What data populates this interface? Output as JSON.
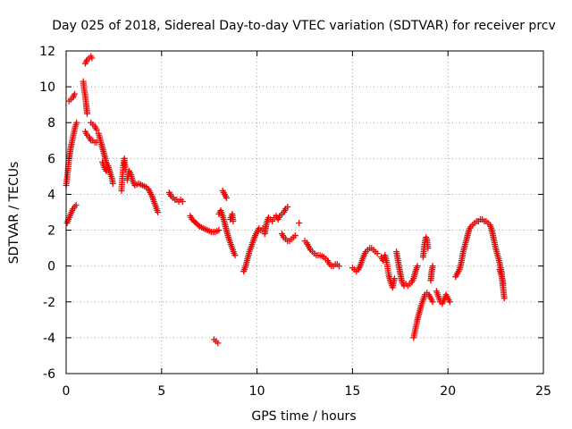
{
  "chart_data": {
    "type": "scatter",
    "title": "Day 025 of 2018, Sidereal Day-to-day VTEC variation (SDTVAR) for receiver prcv",
    "xlabel": "GPS time / hours",
    "ylabel": "SDTVAR / TECUs",
    "xlim": [
      0,
      25
    ],
    "ylim": [
      -6,
      12
    ],
    "xticks": [
      0,
      5,
      10,
      15,
      20,
      25
    ],
    "yticks": [
      -6,
      -4,
      -2,
      0,
      2,
      4,
      6,
      8,
      10,
      12
    ],
    "xtick_labels": [
      "0",
      "5",
      "10",
      "15",
      "20",
      "25"
    ],
    "ytick_labels": [
      "-6",
      "-4",
      "-2",
      "0",
      "2",
      "4",
      "6",
      "8",
      "10",
      "12"
    ],
    "grid": true,
    "marker": "plus",
    "series": [
      {
        "name": "SDTVAR",
        "color": "#ff0000",
        "segments": [
          [
            [
              0.0,
              4.5
            ],
            [
              0.08,
              5.2
            ],
            [
              0.16,
              6.0
            ],
            [
              0.24,
              6.6
            ],
            [
              0.32,
              7.0
            ],
            [
              0.4,
              7.4
            ],
            [
              0.48,
              7.8
            ],
            [
              0.55,
              8.0
            ]
          ],
          [
            [
              0.05,
              2.4
            ],
            [
              0.12,
              2.6
            ],
            [
              0.2,
              2.8
            ],
            [
              0.28,
              3.0
            ],
            [
              0.36,
              3.2
            ],
            [
              0.44,
              3.3
            ],
            [
              0.52,
              3.4
            ]
          ],
          [
            [
              0.15,
              9.2
            ],
            [
              0.25,
              9.3
            ],
            [
              0.35,
              9.4
            ],
            [
              0.45,
              9.6
            ]
          ],
          [
            [
              0.9,
              10.3
            ],
            [
              0.95,
              9.8
            ],
            [
              1.0,
              9.5
            ],
            [
              1.05,
              9.0
            ],
            [
              1.1,
              8.5
            ]
          ],
          [
            [
              1.0,
              7.5
            ],
            [
              1.1,
              7.3
            ],
            [
              1.2,
              7.2
            ],
            [
              1.3,
              7.0
            ],
            [
              1.4,
              7.0
            ],
            [
              1.5,
              6.9
            ],
            [
              1.6,
              6.9
            ]
          ],
          [
            [
              1.0,
              11.3
            ],
            [
              1.1,
              11.5
            ],
            [
              1.2,
              11.6
            ],
            [
              1.3,
              11.7
            ],
            [
              1.35,
              11.6
            ]
          ],
          [
            [
              1.3,
              8.0
            ],
            [
              1.4,
              7.9
            ],
            [
              1.5,
              7.8
            ],
            [
              1.6,
              7.6
            ]
          ],
          [
            [
              1.7,
              7.4
            ],
            [
              1.8,
              7.0
            ],
            [
              1.9,
              6.6
            ],
            [
              2.0,
              6.2
            ],
            [
              2.1,
              5.8
            ],
            [
              2.2,
              5.5
            ],
            [
              2.3,
              5.2
            ],
            [
              2.4,
              4.9
            ],
            [
              2.45,
              4.6
            ]
          ],
          [
            [
              1.9,
              5.8
            ],
            [
              2.0,
              5.5
            ],
            [
              2.1,
              5.3
            ],
            [
              2.2,
              5.6
            ],
            [
              2.3,
              5.2
            ]
          ],
          [
            [
              2.9,
              4.2
            ],
            [
              2.95,
              5.0
            ],
            [
              3.0,
              5.6
            ],
            [
              3.05,
              6.0
            ],
            [
              3.1,
              5.4
            ]
          ],
          [
            [
              3.2,
              4.8
            ],
            [
              3.3,
              5.3
            ],
            [
              3.4,
              5.1
            ],
            [
              3.5,
              4.7
            ],
            [
              3.6,
              4.5
            ],
            [
              3.8,
              4.6
            ],
            [
              4.0,
              4.5
            ],
            [
              4.2,
              4.4
            ]
          ],
          [
            [
              4.3,
              4.3
            ],
            [
              4.4,
              4.1
            ],
            [
              4.5,
              3.9
            ],
            [
              4.6,
              3.6
            ],
            [
              4.7,
              3.3
            ],
            [
              4.8,
              3.0
            ]
          ],
          [
            [
              5.4,
              4.1
            ],
            [
              5.5,
              3.9
            ],
            [
              5.6,
              3.8
            ],
            [
              5.7,
              3.7
            ],
            [
              5.8,
              3.7
            ],
            [
              5.9,
              3.6
            ],
            [
              6.0,
              3.7
            ],
            [
              6.1,
              3.6
            ]
          ],
          [
            [
              6.5,
              2.8
            ],
            [
              6.6,
              2.6
            ],
            [
              6.8,
              2.4
            ],
            [
              7.0,
              2.2
            ],
            [
              7.2,
              2.1
            ],
            [
              7.4,
              2.0
            ],
            [
              7.6,
              1.9
            ],
            [
              7.8,
              1.9
            ],
            [
              8.0,
              2.0
            ]
          ],
          [
            [
              7.75,
              -4.1
            ],
            [
              7.85,
              -4.2
            ],
            [
              7.95,
              -4.3
            ]
          ],
          [
            [
              8.0,
              2.9
            ],
            [
              8.1,
              3.1
            ],
            [
              8.2,
              2.8
            ],
            [
              8.3,
              2.4
            ],
            [
              8.4,
              2.0
            ],
            [
              8.5,
              1.6
            ],
            [
              8.6,
              1.3
            ],
            [
              8.7,
              1.0
            ],
            [
              8.8,
              0.7
            ],
            [
              8.85,
              0.6
            ]
          ],
          [
            [
              8.2,
              4.2
            ],
            [
              8.3,
              4.0
            ],
            [
              8.4,
              3.8
            ]
          ],
          [
            [
              8.6,
              2.6
            ],
            [
              8.7,
              2.9
            ],
            [
              8.75,
              2.5
            ]
          ],
          [
            [
              9.3,
              -0.3
            ],
            [
              9.4,
              0.0
            ],
            [
              9.5,
              0.4
            ],
            [
              9.6,
              0.8
            ],
            [
              9.7,
              1.1
            ],
            [
              9.8,
              1.4
            ],
            [
              9.9,
              1.7
            ],
            [
              10.0,
              1.9
            ],
            [
              10.1,
              2.1
            ],
            [
              10.2,
              2.0
            ],
            [
              10.3,
              2.1
            ]
          ],
          [
            [
              10.4,
              1.8
            ],
            [
              10.5,
              2.4
            ],
            [
              10.6,
              2.7
            ],
            [
              10.7,
              2.6
            ],
            [
              10.8,
              2.5
            ]
          ],
          [
            [
              10.9,
              2.7
            ],
            [
              11.0,
              2.8
            ],
            [
              11.1,
              2.6
            ],
            [
              11.2,
              2.8
            ],
            [
              11.3,
              2.9
            ],
            [
              11.4,
              3.0
            ],
            [
              11.5,
              3.2
            ],
            [
              11.6,
              3.3
            ]
          ],
          [
            [
              11.3,
              1.8
            ],
            [
              11.4,
              1.6
            ],
            [
              11.5,
              1.5
            ],
            [
              11.6,
              1.4
            ],
            [
              11.7,
              1.4
            ],
            [
              11.8,
              1.5
            ],
            [
              11.9,
              1.6
            ],
            [
              12.0,
              1.7
            ]
          ],
          [
            [
              12.2,
              2.4
            ]
          ],
          [
            [
              12.5,
              1.4
            ],
            [
              12.6,
              1.3
            ],
            [
              12.7,
              1.1
            ],
            [
              12.8,
              0.9
            ],
            [
              12.9,
              0.8
            ],
            [
              13.0,
              0.7
            ],
            [
              13.1,
              0.6
            ],
            [
              13.3,
              0.6
            ],
            [
              13.5,
              0.5
            ],
            [
              13.6,
              0.4
            ]
          ],
          [
            [
              13.7,
              0.3
            ],
            [
              13.8,
              0.1
            ],
            [
              13.9,
              0.0
            ],
            [
              14.0,
              0.0
            ],
            [
              14.1,
              0.1
            ],
            [
              14.2,
              0.1
            ],
            [
              14.3,
              0.0
            ]
          ],
          [
            [
              15.0,
              -0.1
            ],
            [
              15.1,
              -0.2
            ],
            [
              15.2,
              -0.3
            ],
            [
              15.3,
              -0.2
            ],
            [
              15.4,
              0.0
            ],
            [
              15.5,
              0.3
            ],
            [
              15.6,
              0.6
            ],
            [
              15.7,
              0.8
            ],
            [
              15.8,
              0.9
            ],
            [
              15.9,
              1.0
            ],
            [
              16.0,
              1.0
            ],
            [
              16.1,
              0.9
            ],
            [
              16.2,
              0.8
            ],
            [
              16.3,
              0.7
            ]
          ],
          [
            [
              16.5,
              0.5
            ],
            [
              16.6,
              0.3
            ],
            [
              16.7,
              0.6
            ],
            [
              16.8,
              0.2
            ],
            [
              16.9,
              -0.5
            ],
            [
              17.0,
              -0.9
            ],
            [
              17.1,
              -1.2
            ],
            [
              17.2,
              -0.7
            ]
          ],
          [
            [
              17.3,
              0.8
            ],
            [
              17.4,
              0.2
            ],
            [
              17.5,
              -0.4
            ],
            [
              17.6,
              -0.9
            ],
            [
              17.7,
              -1.1
            ],
            [
              17.8,
              -1.0
            ],
            [
              17.9,
              -1.1
            ],
            [
              18.0,
              -1.0
            ],
            [
              18.1,
              -0.9
            ],
            [
              18.2,
              -0.7
            ],
            [
              18.3,
              -0.3
            ],
            [
              18.4,
              0.0
            ]
          ],
          [
            [
              18.2,
              -4.0
            ],
            [
              18.3,
              -3.5
            ],
            [
              18.4,
              -3.0
            ],
            [
              18.5,
              -2.6
            ],
            [
              18.6,
              -2.2
            ],
            [
              18.7,
              -1.9
            ],
            [
              18.8,
              -1.6
            ],
            [
              18.9,
              -1.5
            ],
            [
              19.0,
              -1.6
            ],
            [
              19.1,
              -1.8
            ],
            [
              19.2,
              -2.0
            ]
          ],
          [
            [
              18.7,
              0.5
            ],
            [
              18.75,
              1.0
            ],
            [
              18.8,
              1.4
            ],
            [
              18.85,
              1.6
            ],
            [
              18.9,
              1.5
            ],
            [
              18.95,
              1.0
            ]
          ],
          [
            [
              19.1,
              -0.8
            ],
            [
              19.15,
              -0.3
            ],
            [
              19.2,
              0.0
            ]
          ],
          [
            [
              19.4,
              -1.4
            ],
            [
              19.5,
              -1.7
            ],
            [
              19.6,
              -2.0
            ],
            [
              19.7,
              -2.1
            ],
            [
              19.8,
              -1.9
            ],
            [
              19.9,
              -1.6
            ],
            [
              20.0,
              -1.8
            ],
            [
              20.1,
              -2.0
            ]
          ],
          [
            [
              20.4,
              -0.6
            ],
            [
              20.5,
              -0.4
            ],
            [
              20.6,
              -0.2
            ],
            [
              20.7,
              0.2
            ],
            [
              20.8,
              0.8
            ],
            [
              20.9,
              1.2
            ],
            [
              21.0,
              1.6
            ],
            [
              21.1,
              2.0
            ],
            [
              21.2,
              2.2
            ],
            [
              21.3,
              2.3
            ],
            [
              21.4,
              2.4
            ],
            [
              21.5,
              2.5
            ],
            [
              21.6,
              2.5
            ],
            [
              21.7,
              2.6
            ],
            [
              21.8,
              2.6
            ],
            [
              21.9,
              2.5
            ],
            [
              22.0,
              2.5
            ],
            [
              22.1,
              2.4
            ],
            [
              22.2,
              2.3
            ],
            [
              22.3,
              2.0
            ],
            [
              22.4,
              1.5
            ],
            [
              22.5,
              1.0
            ],
            [
              22.6,
              0.6
            ],
            [
              22.7,
              0.2
            ],
            [
              22.8,
              -0.3
            ],
            [
              22.85,
              -0.8
            ],
            [
              22.9,
              -1.3
            ],
            [
              22.95,
              -1.8
            ]
          ],
          [
            [
              22.7,
              -0.2
            ],
            [
              22.8,
              -0.5
            ],
            [
              22.9,
              -1.0
            ]
          ]
        ]
      }
    ]
  }
}
